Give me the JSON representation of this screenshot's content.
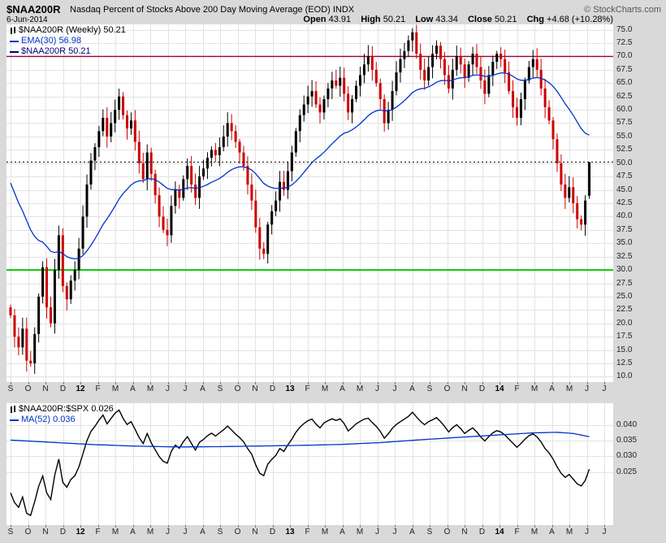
{
  "header": {
    "symbol": "$NAA200R",
    "title": "Nasdaq Percent of Stocks Above 200 Day Moving Average (EOD) INDX",
    "copyright": "© StockCharts.com",
    "date": "6-Jun-2014",
    "quote": [
      {
        "label": "Open",
        "value": "43.91"
      },
      {
        "label": "High",
        "value": "50.21"
      },
      {
        "label": "Low",
        "value": "43.34"
      },
      {
        "label": "Close",
        "value": "50.21"
      },
      {
        "label": "Chg",
        "value": "+4.68 (+10.28%)"
      }
    ]
  },
  "chart_data": [
    {
      "type": "candlestick",
      "legend": {
        "series": "$NAA200R (Weekly) 50.21",
        "ema": "EMA(30) 56.98",
        "last": "$NAA200R 50.21"
      },
      "x_labels": [
        "S",
        "O",
        "N",
        "D",
        "12",
        "F",
        "M",
        "A",
        "M",
        "J",
        "J",
        "A",
        "S",
        "O",
        "N",
        "D",
        "13",
        "F",
        "M",
        "A",
        "M",
        "J",
        "J",
        "A",
        "S",
        "O",
        "N",
        "D",
        "14",
        "F",
        "M",
        "A",
        "M",
        "J",
        "J"
      ],
      "y_axis": {
        "min": 10,
        "max": 75,
        "step": 2.5
      },
      "hlines": [
        {
          "value": 70,
          "color": "#990033",
          "dash": false,
          "width": 1.4
        },
        {
          "value": 30,
          "color": "#00cc00",
          "dash": false,
          "width": 2
        },
        {
          "value": 50.21,
          "color": "#000000",
          "dash": true,
          "width": 1
        }
      ],
      "ema_period": 30,
      "ema_seed": 48,
      "ema_last": 56.98,
      "last_ohlc": {
        "open": 43.91,
        "high": 50.21,
        "low": 43.34,
        "close": 50.21
      },
      "colors": {
        "up": "#000000",
        "down": "#cc0000",
        "ema": "#0033cc",
        "last_legend": "#000080"
      },
      "closes": [
        21.5,
        17.5,
        15.5,
        19,
        13,
        12.5,
        18,
        25,
        30.5,
        23,
        20,
        30,
        36.5,
        27,
        24.5,
        28,
        30,
        34,
        40,
        46,
        50.5,
        53,
        56,
        58.5,
        55,
        57.5,
        60,
        62.5,
        59,
        56.5,
        58,
        54,
        50,
        47,
        52,
        48,
        44,
        40,
        37.5,
        36.5,
        42,
        45,
        43.5,
        47,
        49.5,
        46,
        43.5,
        47.5,
        49,
        51,
        52.5,
        51.5,
        53,
        55,
        57.5,
        56,
        54,
        52,
        49.5,
        46,
        43,
        38,
        34,
        33,
        38.5,
        41,
        43,
        46.5,
        45,
        48.5,
        52,
        56,
        59,
        61,
        62.5,
        63.5,
        61,
        59.5,
        62,
        64,
        65.5,
        64.5,
        66,
        63,
        59.5,
        62,
        64.5,
        66.5,
        68.5,
        70,
        67.5,
        65,
        62,
        57.5,
        60,
        63.5,
        67,
        69.5,
        71,
        73,
        74.5,
        70.5,
        67.5,
        65.5,
        68,
        70.5,
        72,
        69.5,
        66.5,
        64,
        67.5,
        70,
        68.5,
        66,
        68.5,
        70.5,
        68,
        65.5,
        63,
        66.5,
        69,
        70.5,
        69.5,
        67,
        63.5,
        60.5,
        58.5,
        62,
        65.5,
        68,
        69.5,
        67.5,
        64,
        60.5,
        58,
        54.5,
        50,
        46,
        43.5,
        45.5,
        42.5,
        39.5,
        38.5,
        43,
        50.21
      ]
    },
    {
      "type": "line",
      "legend": {
        "ratio": "$NAA200R:$SPX 0.026",
        "ma": "MA(52) 0.036"
      },
      "y_ticks": [
        0.04,
        0.035,
        0.03,
        0.025
      ],
      "y_range": {
        "min": 0.008,
        "max": 0.047
      },
      "colors": {
        "ratio": "#000000",
        "ma": "#0033cc"
      },
      "values": [
        0.0183,
        0.0152,
        0.0137,
        0.017,
        0.0118,
        0.0111,
        0.0155,
        0.0204,
        0.0237,
        0.0183,
        0.0162,
        0.024,
        0.0291,
        0.0217,
        0.0201,
        0.0226,
        0.0238,
        0.0266,
        0.0308,
        0.035,
        0.038,
        0.0396,
        0.0416,
        0.0432,
        0.0404,
        0.0421,
        0.0438,
        0.0448,
        0.0421,
        0.0402,
        0.0411,
        0.0386,
        0.036,
        0.0341,
        0.0373,
        0.0343,
        0.0321,
        0.0299,
        0.0284,
        0.0278,
        0.0316,
        0.0336,
        0.0326,
        0.0347,
        0.0363,
        0.0341,
        0.032,
        0.0345,
        0.0354,
        0.0366,
        0.0374,
        0.0365,
        0.0375,
        0.0385,
        0.0397,
        0.0384,
        0.0371,
        0.036,
        0.0346,
        0.0325,
        0.0307,
        0.0273,
        0.0246,
        0.0238,
        0.0275,
        0.029,
        0.0303,
        0.0325,
        0.0316,
        0.0337,
        0.0355,
        0.0377,
        0.0393,
        0.0405,
        0.0414,
        0.0419,
        0.0403,
        0.0391,
        0.0407,
        0.0414,
        0.042,
        0.0415,
        0.042,
        0.0405,
        0.0381,
        0.0392,
        0.0404,
        0.0412,
        0.0419,
        0.0422,
        0.0408,
        0.0396,
        0.038,
        0.0358,
        0.0372,
        0.039,
        0.0402,
        0.0411,
        0.0419,
        0.0428,
        0.0441,
        0.0426,
        0.0412,
        0.0401,
        0.0411,
        0.0417,
        0.0424,
        0.0411,
        0.0396,
        0.0378,
        0.0392,
        0.0401,
        0.0389,
        0.0373,
        0.0383,
        0.0391,
        0.0378,
        0.0362,
        0.0349,
        0.0363,
        0.0375,
        0.0382,
        0.0378,
        0.0368,
        0.0355,
        0.0342,
        0.0329,
        0.0341,
        0.0355,
        0.0366,
        0.0372,
        0.0362,
        0.0346,
        0.0325,
        0.0311,
        0.0291,
        0.0266,
        0.0246,
        0.0233,
        0.0242,
        0.0227,
        0.0212,
        0.0205,
        0.0223,
        0.0259
      ],
      "ma52_points": [
        [
          0,
          0.0352
        ],
        [
          10,
          0.0345
        ],
        [
          20,
          0.0338
        ],
        [
          30,
          0.0333
        ],
        [
          42,
          0.033
        ],
        [
          52,
          0.0331
        ],
        [
          62,
          0.0333
        ],
        [
          72,
          0.0335
        ],
        [
          82,
          0.0338
        ],
        [
          92,
          0.0344
        ],
        [
          102,
          0.0353
        ],
        [
          112,
          0.0361
        ],
        [
          122,
          0.0369
        ],
        [
          130,
          0.0375
        ],
        [
          136,
          0.0377
        ],
        [
          140,
          0.0373
        ],
        [
          144,
          0.0363
        ]
      ]
    }
  ]
}
